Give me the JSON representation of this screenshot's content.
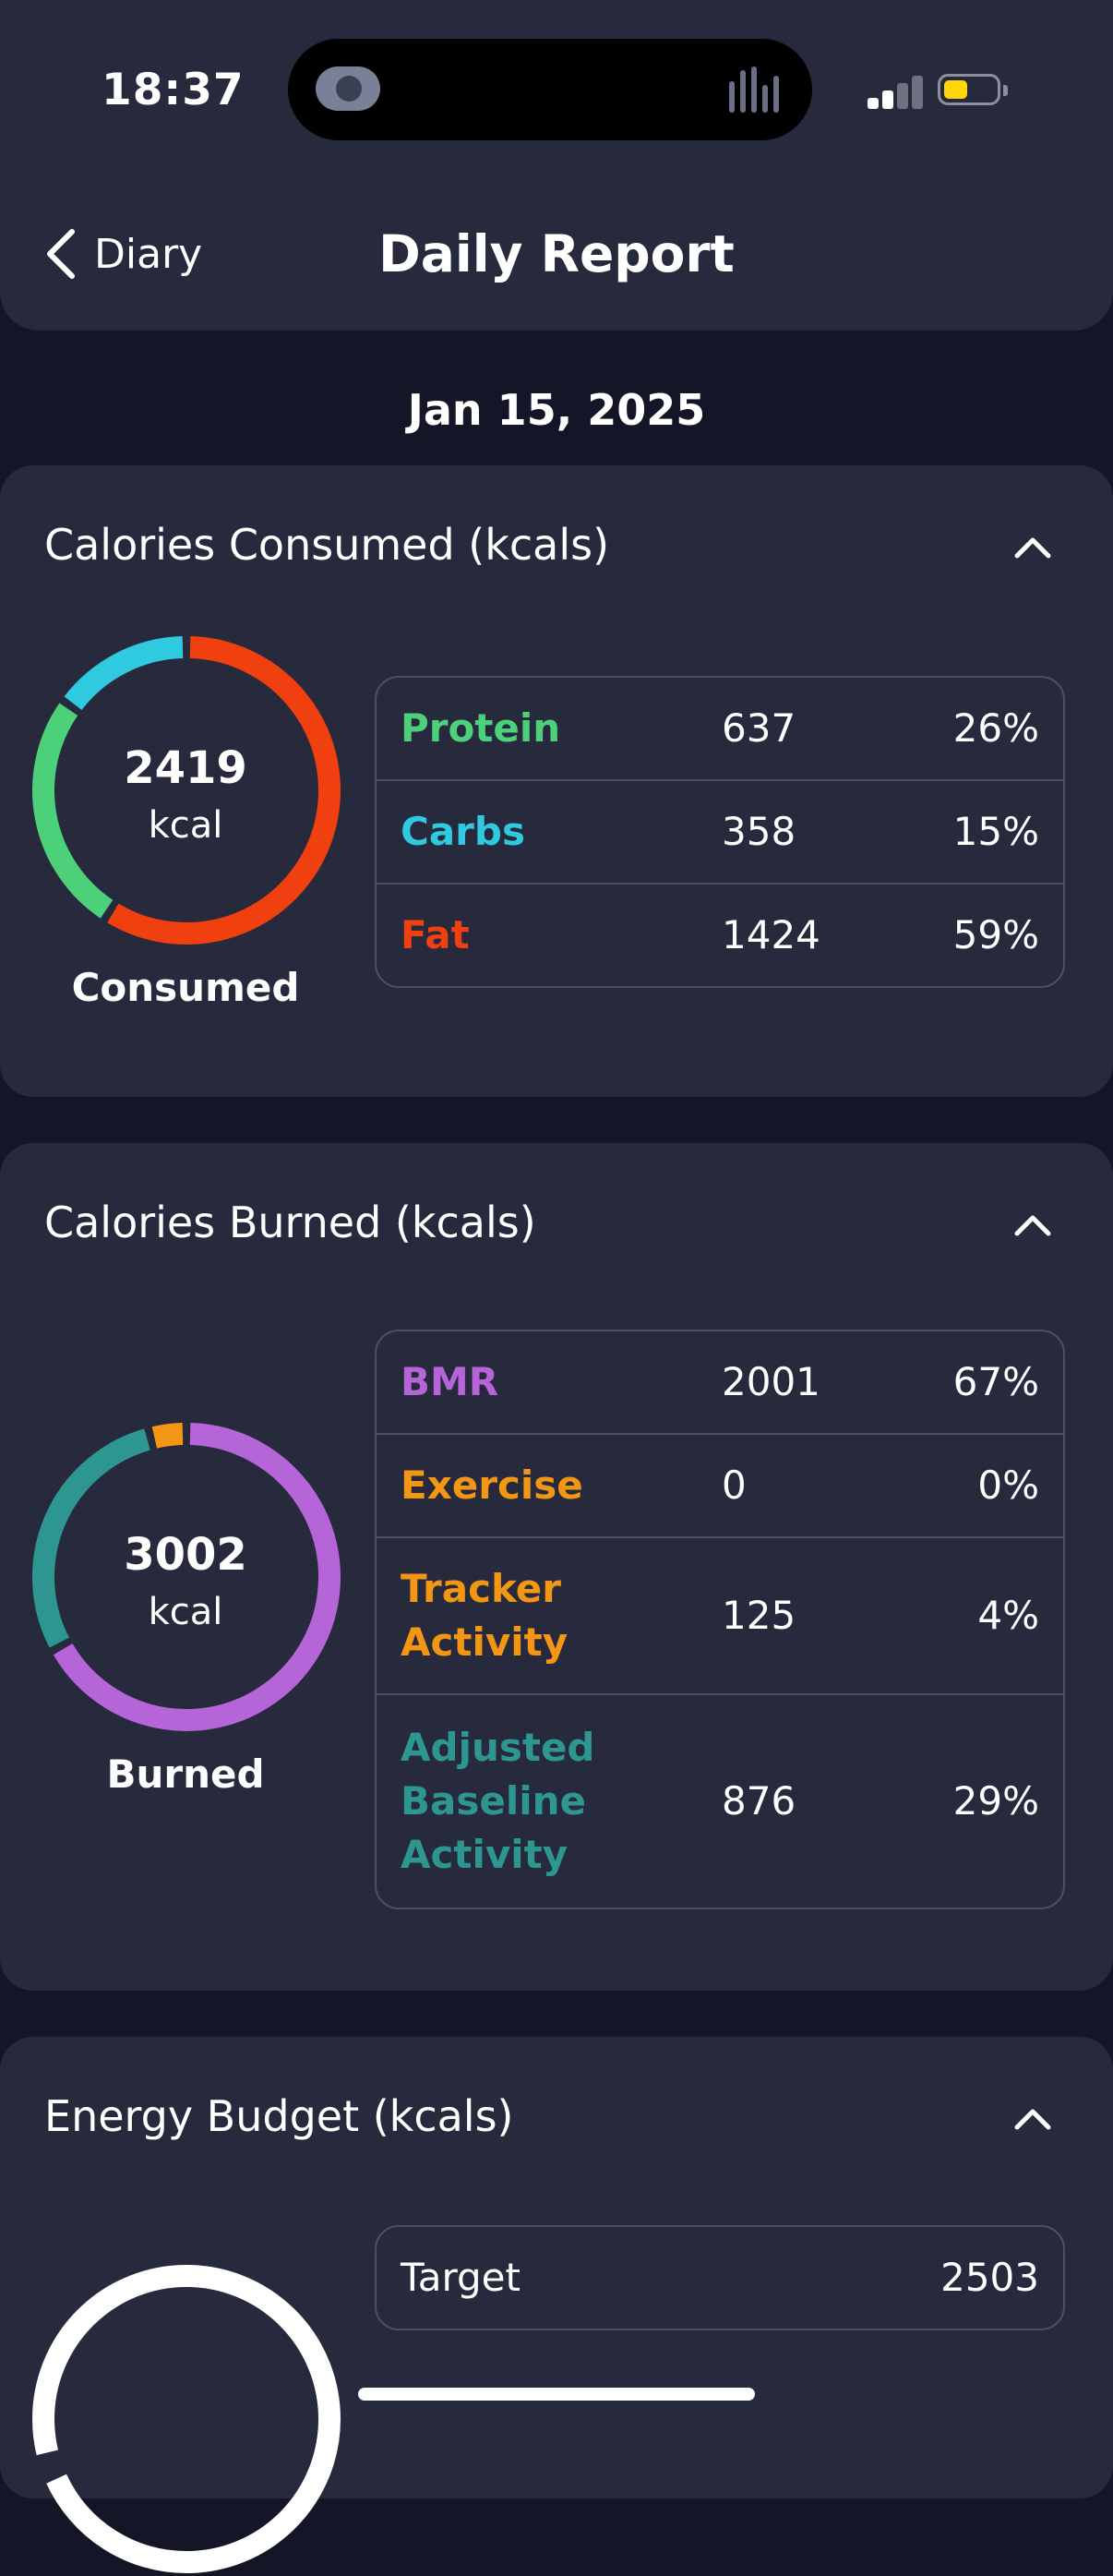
{
  "status_bar": {
    "time": "18:37",
    "signal_bars_active": 2,
    "signal_bars_total": 4,
    "battery_level": 0.45,
    "battery_color": "#ffd60a"
  },
  "nav": {
    "back_label": "Diary",
    "back_icon": "chevron-left-icon",
    "title": "Daily Report"
  },
  "date": "Jan 15, 2025",
  "consumed": {
    "title": "Calories Consumed (kcals)",
    "total": "2419",
    "unit": "kcal",
    "caption": "Consumed",
    "rows": [
      {
        "label": "Protein",
        "value": "637",
        "pct": "26%",
        "share": 26,
        "color": "#4cd07a"
      },
      {
        "label": "Carbs",
        "value": "358",
        "pct": "15%",
        "share": 15,
        "color": "#2fcadf"
      },
      {
        "label": "Fat",
        "value": "1424",
        "pct": "59%",
        "share": 59,
        "color": "#f0400f"
      }
    ]
  },
  "burned": {
    "title": "Calories Burned (kcals)",
    "total": "3002",
    "unit": "kcal",
    "caption": "Burned",
    "rows": [
      {
        "label": "BMR",
        "value": "2001",
        "pct": "67%",
        "share": 67,
        "color": "#b565d8"
      },
      {
        "label": "Exercise",
        "value": "0",
        "pct": "0%",
        "share": 0,
        "color": "#f39614"
      },
      {
        "label": "Tracker Activity",
        "value": "125",
        "pct": "4%",
        "share": 4,
        "color": "#f39614"
      },
      {
        "label": "Adjusted Baseline Activity",
        "value": "876",
        "pct": "29%",
        "share": 29,
        "color": "#2e9690"
      }
    ]
  },
  "budget": {
    "title": "Energy Budget (kcals)",
    "rows": [
      {
        "label": "Target",
        "value": "2503"
      }
    ]
  },
  "colors": {
    "background": "#141526",
    "card": "#272a3d",
    "border": "#4c5063"
  }
}
